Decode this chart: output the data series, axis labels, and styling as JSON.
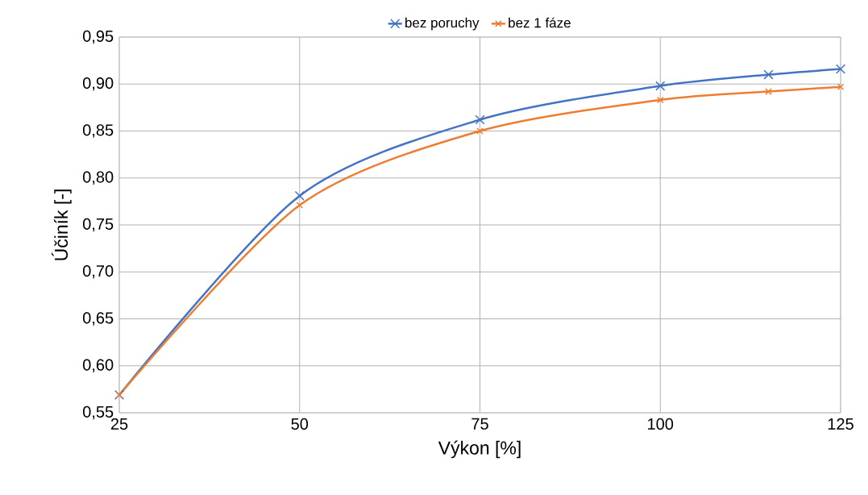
{
  "chart_data": {
    "type": "line",
    "xlabel": "Výkon [%]",
    "ylabel": "Účiník [-]",
    "x": [
      25,
      50,
      75,
      100,
      115,
      125
    ],
    "series": [
      {
        "name": "bez poruchy",
        "color": "#4472c4",
        "values": [
          0.569,
          0.781,
          0.862,
          0.898,
          0.91,
          0.916
        ]
      },
      {
        "name": "bez 1 fáze",
        "color": "#ed7d31",
        "values": [
          0.569,
          0.771,
          0.85,
          0.883,
          0.892,
          0.897
        ]
      }
    ],
    "xlim": [
      25,
      125
    ],
    "ylim": [
      0.55,
      0.95
    ],
    "xticks": [
      25,
      50,
      75,
      100,
      125
    ],
    "yticks": [
      {
        "value": 0.55,
        "label": "0,55"
      },
      {
        "value": 0.6,
        "label": "0,60"
      },
      {
        "value": 0.65,
        "label": "0,65"
      },
      {
        "value": 0.7,
        "label": "0,70"
      },
      {
        "value": 0.75,
        "label": "0,75"
      },
      {
        "value": 0.8,
        "label": "0,80"
      },
      {
        "value": 0.85,
        "label": "0,85"
      },
      {
        "value": 0.9,
        "label": "0,90"
      },
      {
        "value": 0.95,
        "label": "0,95"
      }
    ],
    "grid": true,
    "legend": "top",
    "marker": "cross"
  }
}
